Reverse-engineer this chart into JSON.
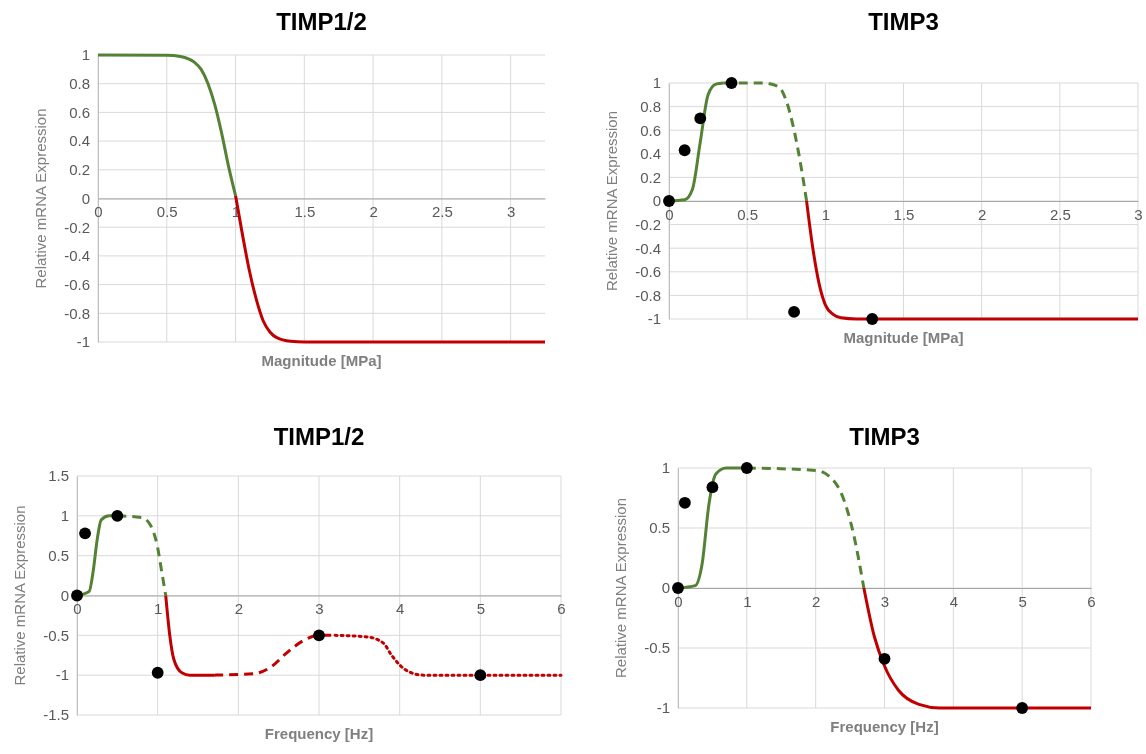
{
  "chart_data": [
    {
      "type": "line",
      "title": "TIMP1/2",
      "xlabel": "Magnitude [MPa]",
      "ylabel": "Relative mRNA Expression",
      "xlim": [
        0,
        3.25
      ],
      "xticks": [
        0,
        0.5,
        1,
        1.5,
        2,
        2.5,
        3
      ],
      "ylim": [
        -1,
        1
      ],
      "yticks": [
        -1,
        -0.8,
        -0.6,
        -0.4,
        -0.2,
        0,
        0.2,
        0.4,
        0.6,
        0.8,
        1
      ],
      "grid": true,
      "series": [
        {
          "color": "#548235",
          "line_style": "solid",
          "x": [
            0,
            0.5,
            0.6,
            0.7,
            0.75,
            0.8,
            0.85,
            0.9,
            0.95,
            1
          ],
          "values": [
            1,
            0.999,
            0.99,
            0.95,
            0.9,
            0.8,
            0.65,
            0.45,
            0.22,
            0.02
          ]
        },
        {
          "color": "#c00000",
          "line_style": "solid",
          "x": [
            1,
            1.05,
            1.1,
            1.15,
            1.2,
            1.25,
            1.3,
            1.4,
            1.5,
            3.25
          ],
          "values": [
            0.02,
            -0.25,
            -0.5,
            -0.7,
            -0.85,
            -0.93,
            -0.97,
            -0.995,
            -1,
            -1
          ]
        }
      ]
    },
    {
      "type": "line",
      "title": "TIMP3",
      "xlabel": "Magnitude [MPa]",
      "ylabel": "Relative mRNA Expression",
      "xlim": [
        0,
        3
      ],
      "xticks": [
        0,
        0.5,
        1,
        1.5,
        2,
        2.5,
        3
      ],
      "ylim": [
        -1,
        1
      ],
      "yticks": [
        -1,
        -0.8,
        -0.6,
        -0.4,
        -0.2,
        0,
        0.2,
        0.4,
        0.6,
        0.8,
        1
      ],
      "grid": true,
      "series": [
        {
          "color": "#548235",
          "line_style": "solid",
          "x": [
            0,
            0.1,
            0.15,
            0.2,
            0.25,
            0.3,
            0.35
          ],
          "values": [
            0,
            0.01,
            0.1,
            0.5,
            0.9,
            0.99,
            1
          ]
        },
        {
          "color": "#548235",
          "line_style": "dashed",
          "x": [
            0.35,
            0.6,
            0.7,
            0.75,
            0.8,
            0.85,
            0.88
          ],
          "values": [
            1,
            1,
            0.97,
            0.85,
            0.6,
            0.25,
            0
          ]
        },
        {
          "color": "#c00000",
          "line_style": "solid",
          "x": [
            0.88,
            0.92,
            0.96,
            1,
            1.05,
            1.1,
            1.2,
            3
          ],
          "values": [
            0,
            -0.4,
            -0.7,
            -0.88,
            -0.96,
            -0.99,
            -1,
            -1
          ]
        },
        {
          "type": "scatter",
          "color": "#000000",
          "marker": "circle",
          "x": [
            0,
            0.1,
            0.2,
            0.4,
            0.8,
            1.3
          ],
          "values": [
            0,
            0.43,
            0.7,
            1,
            -0.94,
            -1
          ]
        }
      ]
    },
    {
      "type": "line",
      "title": "TIMP1/2",
      "xlabel": "Frequency [Hz]",
      "ylabel": "Relative mRNA Expression",
      "xlim": [
        0,
        6
      ],
      "xticks": [
        0,
        1,
        2,
        3,
        4,
        5,
        6
      ],
      "ylim": [
        -1.5,
        1.5
      ],
      "yticks": [
        -1.5,
        -1,
        -0.5,
        0,
        0.5,
        1,
        1.5
      ],
      "grid": true,
      "series": [
        {
          "color": "#548235",
          "line_style": "solid",
          "x": [
            0,
            0.15,
            0.2,
            0.25,
            0.3,
            0.4,
            0.5
          ],
          "values": [
            0,
            0.05,
            0.3,
            0.7,
            0.95,
            1,
            1
          ]
        },
        {
          "color": "#548235",
          "line_style": "dashed",
          "x": [
            0.5,
            0.8,
            0.9,
            1,
            1.05,
            1.1
          ],
          "values": [
            1,
            0.98,
            0.9,
            0.6,
            0.3,
            0
          ]
        },
        {
          "color": "#c00000",
          "line_style": "solid",
          "x": [
            1.1,
            1.15,
            1.2,
            1.3,
            1.4,
            1.7
          ],
          "values": [
            0,
            -0.5,
            -0.8,
            -0.97,
            -1,
            -1
          ]
        },
        {
          "color": "#c00000",
          "line_style": "dashed",
          "x": [
            1.7,
            2.2,
            2.4,
            2.6,
            2.8,
            3,
            3.2
          ],
          "values": [
            -1,
            -0.98,
            -0.9,
            -0.72,
            -0.57,
            -0.5,
            -0.5
          ]
        },
        {
          "color": "#c00000",
          "line_style": "dotted",
          "x": [
            3.2,
            3.6,
            3.8,
            3.9,
            4.1,
            4.3,
            6
          ],
          "values": [
            -0.5,
            -0.52,
            -0.6,
            -0.75,
            -0.95,
            -1,
            -1
          ]
        },
        {
          "type": "scatter",
          "color": "#000000",
          "marker": "circle",
          "x": [
            0,
            0.1,
            0.5,
            1,
            3,
            5
          ],
          "values": [
            0,
            0.78,
            1,
            -0.97,
            -0.5,
            -1
          ]
        }
      ]
    },
    {
      "type": "line",
      "title": "TIMP3",
      "xlabel": "Frequency [Hz]",
      "ylabel": "Relative mRNA Expression",
      "xlim": [
        0,
        6
      ],
      "xticks": [
        0,
        1,
        2,
        3,
        4,
        5,
        6
      ],
      "ylim": [
        -1,
        1
      ],
      "yticks": [
        -1,
        -0.5,
        0,
        0.5,
        1
      ],
      "grid": true,
      "series": [
        {
          "color": "#548235",
          "line_style": "solid",
          "x": [
            0,
            0.25,
            0.35,
            0.45,
            0.55,
            0.7,
            1
          ],
          "values": [
            0,
            0.02,
            0.2,
            0.7,
            0.95,
            1,
            1
          ]
        },
        {
          "color": "#548235",
          "line_style": "dashed",
          "x": [
            1,
            2,
            2.2,
            2.4,
            2.55,
            2.7
          ],
          "values": [
            1,
            0.98,
            0.93,
            0.75,
            0.45,
            0
          ]
        },
        {
          "color": "#c00000",
          "line_style": "solid",
          "x": [
            2.7,
            2.85,
            3,
            3.2,
            3.5,
            3.8,
            6
          ],
          "values": [
            0,
            -0.4,
            -0.65,
            -0.85,
            -0.97,
            -1,
            -1
          ]
        },
        {
          "type": "scatter",
          "color": "#000000",
          "marker": "circle",
          "x": [
            0,
            0.1,
            0.5,
            1,
            3,
            5
          ],
          "values": [
            0,
            0.71,
            0.84,
            1,
            -0.59,
            -1
          ]
        }
      ]
    }
  ]
}
